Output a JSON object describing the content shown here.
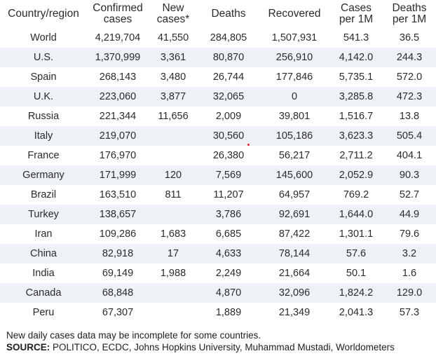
{
  "chart_data": {
    "type": "table",
    "columns": [
      "Country/region",
      "Confirmed\ncases",
      "New\ncases*",
      "Deaths",
      "Recovered",
      "Cases\nper 1M",
      "Deaths\nper 1M"
    ],
    "rows": [
      [
        "World",
        "4,219,704",
        "41,550",
        "284,805",
        "1,507,931",
        "541.3",
        "36.5"
      ],
      [
        "U.S.",
        "1,370,999",
        "3,361",
        "80,870",
        "256,910",
        "4,142.0",
        "244.3"
      ],
      [
        "Spain",
        "268,143",
        "3,480",
        "26,744",
        "177,846",
        "5,735.1",
        "572.0"
      ],
      [
        "U.K.",
        "223,060",
        "3,877",
        "32,065",
        "0",
        "3,285.8",
        "472.3"
      ],
      [
        "Russia",
        "221,344",
        "11,656",
        "2,009",
        "39,801",
        "1,516.7",
        "13.8"
      ],
      [
        "Italy",
        "219,070",
        "",
        "30,560",
        "105,186",
        "3,623.3",
        "505.4"
      ],
      [
        "France",
        "176,970",
        "",
        "26,380",
        "56,217",
        "2,711.2",
        "404.1"
      ],
      [
        "Germany",
        "171,999",
        "120",
        "7,569",
        "145,600",
        "2,052.9",
        "90.3"
      ],
      [
        "Brazil",
        "163,510",
        "811",
        "11,207",
        "64,957",
        "769.2",
        "52.7"
      ],
      [
        "Turkey",
        "138,657",
        "",
        "3,786",
        "92,691",
        "1,644.0",
        "44.9"
      ],
      [
        "Iran",
        "109,286",
        "1,683",
        "6,685",
        "87,422",
        "1,301.1",
        "79.6"
      ],
      [
        "China",
        "82,918",
        "17",
        "4,633",
        "78,144",
        "57.6",
        "3.2"
      ],
      [
        "India",
        "69,149",
        "1,988",
        "2,249",
        "21,664",
        "50.1",
        "1.6"
      ],
      [
        "Canada",
        "68,848",
        "",
        "4,870",
        "32,096",
        "1,824.2",
        "129.0"
      ],
      [
        "Peru",
        "67,307",
        "",
        "1,889",
        "21,349",
        "2,041.3",
        "57.3"
      ]
    ]
  },
  "footnote": "New daily cases data may be incomplete for some countries.",
  "source_label": "SOURCE:",
  "source_text": " POLITICO, ECDC, Johns Hopkins University, Muhammad Mustadi, Worldometers",
  "colors": {
    "stripe": "#eef2f6",
    "text": "#2b2b2b",
    "marker": "#dd2222"
  }
}
